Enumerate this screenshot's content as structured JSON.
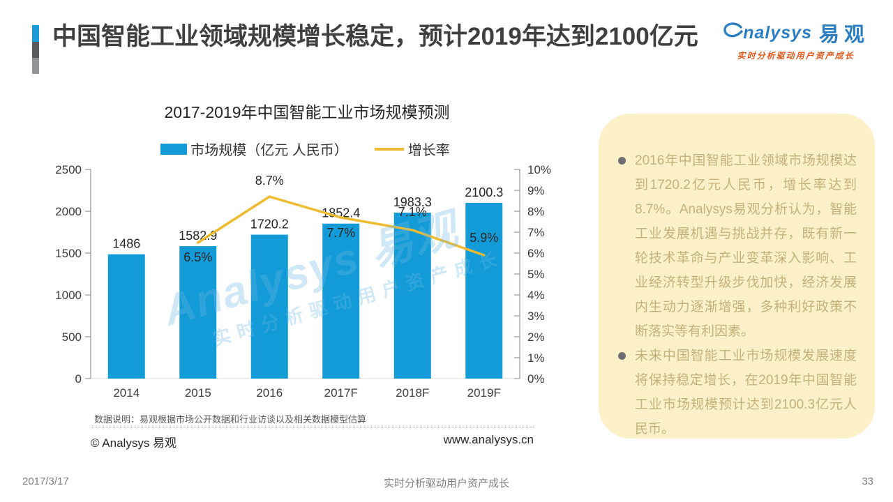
{
  "page": {
    "title": "中国智能工业领域规模增长稳定，预计2019年达到2100亿元",
    "date": "2017/3/17",
    "footer_tagline": "实时分析驱动用户资产成长",
    "page_number": "33"
  },
  "logo": {
    "brand_en": "nalysys",
    "brand_cn": "易观",
    "tagline": "实时分析驱动用户资产成长"
  },
  "chart_data": {
    "type": "bar",
    "title": "2017-2019年中国智能工业市场规模预测",
    "categories": [
      "2014",
      "2015",
      "2016",
      "2017F",
      "2018F",
      "2019F"
    ],
    "series": [
      {
        "name": "市场规模（亿元 人民币）",
        "type": "bar",
        "axis": "left",
        "values": [
          1486,
          1582.9,
          1720.2,
          1852.4,
          1983.3,
          2100.3
        ],
        "color": "#129BD7"
      },
      {
        "name": "增长率",
        "type": "line",
        "axis": "right",
        "values": [
          null,
          6.5,
          8.7,
          7.7,
          7.1,
          5.9
        ],
        "color": "#EEBA2F"
      }
    ],
    "value_labels": [
      "1486",
      "1582.9",
      "1720.2",
      "1852.4",
      "1983.3",
      "2100.3"
    ],
    "growth_labels": [
      "",
      "6.5%",
      "8.7%",
      "7.7%",
      "7.1%",
      "5.9%"
    ],
    "left_axis": {
      "min": 0,
      "max": 2500,
      "step": 500
    },
    "right_axis": {
      "min": 0,
      "max": 10,
      "step": 1,
      "suffix": "%"
    },
    "legend_position": "top",
    "grid": false
  },
  "chart_footnote": "数据说明：易观根据市场公开数据和行业访谈以及相关数据模型估算",
  "copyright": "© Analysys 易观",
  "website": "www.analysys.cn",
  "watermark": {
    "line1": "Analysys 易观",
    "line2": "实时分析驱动用户资产成长"
  },
  "sidebar": {
    "bullets": [
      "2016年中国智能工业领域市场规模达到1720.2亿元人民币，增长率达到8.7%。Analysys易观分析认为，智能工业发展机遇与挑战并存，既有新一轮技术革命与产业变革深入影响、工业经济转型升级步伐加快，经济发展内生动力逐渐增强，多种利好政策不断落实等有利因素。",
      "未来中国智能工业市场规模发展速度将保持稳定增长，在2019年中国智能工业市场规模预计达到2100.3亿元人民币。"
    ]
  }
}
